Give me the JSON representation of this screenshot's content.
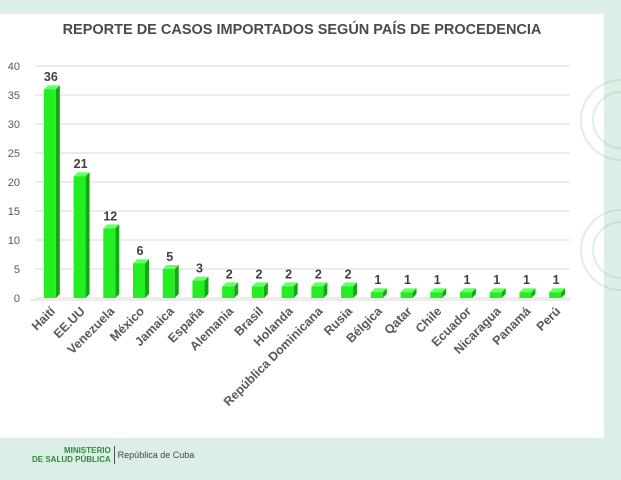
{
  "footer": {
    "ministry_line1": "MINISTERIO",
    "ministry_line2": "DE SALUD PÚBLICA",
    "country": "República de Cuba"
  },
  "colors": {
    "background": "#dcefe6",
    "bar_front": "#22ee22",
    "bar_side": "#11a811",
    "bar_top": "#66ff66",
    "ministry_green": "#2e8b3a"
  },
  "chart_data": {
    "type": "bar",
    "title": "REPORTE DE CASOS IMPORTADOS SEGÚN PAÍS DE PROCEDENCIA",
    "xlabel": "",
    "ylabel": "",
    "ylim": [
      0,
      40
    ],
    "yticks": [
      0,
      5,
      10,
      15,
      20,
      25,
      30,
      35,
      40
    ],
    "grid": true,
    "legend": "none",
    "categories": [
      "Haití",
      "EE.UU",
      "Venezuela",
      "México",
      "Jamaica",
      "España",
      "Alemania",
      "Brasil",
      "Holanda",
      "República Dominicana",
      "Rusia",
      "Bélgica",
      "Qatar",
      "Chile",
      "Ecuador",
      "Nicaragua",
      "Panamá",
      "Perú"
    ],
    "values": [
      36,
      21,
      12,
      6,
      5,
      3,
      2,
      2,
      2,
      2,
      2,
      1,
      1,
      1,
      1,
      1,
      1,
      1
    ]
  }
}
